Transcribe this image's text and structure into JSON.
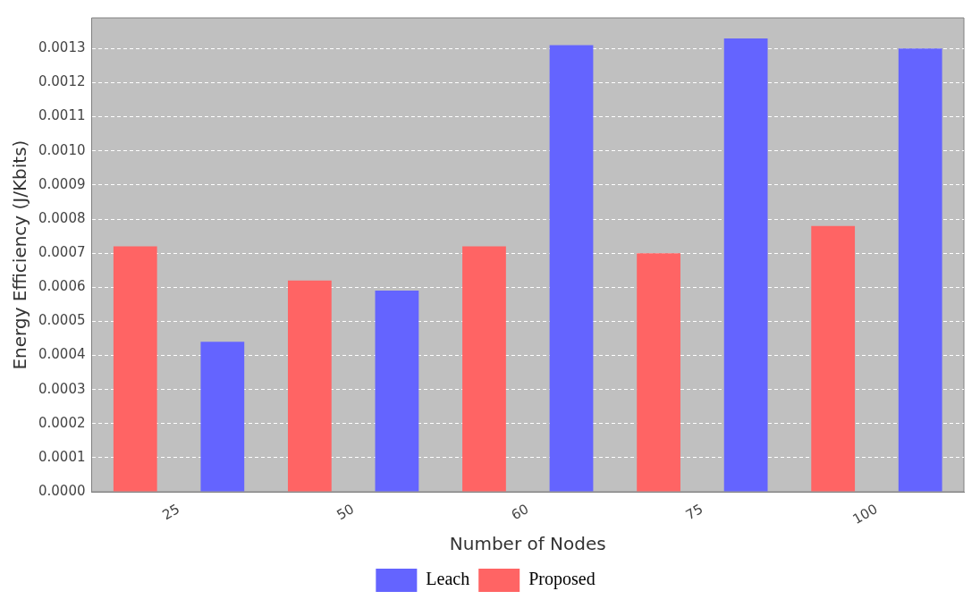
{
  "chart_data": {
    "type": "bar",
    "xlabel": "Number of Nodes",
    "ylabel": "Energy Efficiency (J/Kbits)",
    "categories": [
      "25",
      "50",
      "60",
      "75",
      "100"
    ],
    "series": [
      {
        "name": "Proposed",
        "color": "#ff6464",
        "values": [
          0.00072,
          0.00062,
          0.00072,
          0.0007,
          0.00078
        ]
      },
      {
        "name": "Leach",
        "color": "#6464ff",
        "values": [
          0.00044,
          0.00059,
          0.00131,
          0.00133,
          0.0013
        ]
      }
    ],
    "ylim": [
      0,
      0.00139
    ],
    "yticks": [
      {
        "value": 0,
        "label": "0.0000"
      },
      {
        "value": 0.0001,
        "label": "0.0001"
      },
      {
        "value": 0.0002,
        "label": "0.0002"
      },
      {
        "value": 0.0003,
        "label": "0.0003"
      },
      {
        "value": 0.0004,
        "label": "0.0004"
      },
      {
        "value": 0.0005,
        "label": "0.0005"
      },
      {
        "value": 0.0006,
        "label": "0.0006"
      },
      {
        "value": 0.0007,
        "label": "0.0007"
      },
      {
        "value": 0.0008,
        "label": "0.0008"
      },
      {
        "value": 0.0009,
        "label": "0.0009"
      },
      {
        "value": 0.001,
        "label": "0.0010"
      },
      {
        "value": 0.0011,
        "label": "0.0011"
      },
      {
        "value": 0.0012,
        "label": "0.0012"
      },
      {
        "value": 0.0013,
        "label": "0.0013"
      }
    ],
    "grid": "y",
    "legend": "bottom"
  }
}
